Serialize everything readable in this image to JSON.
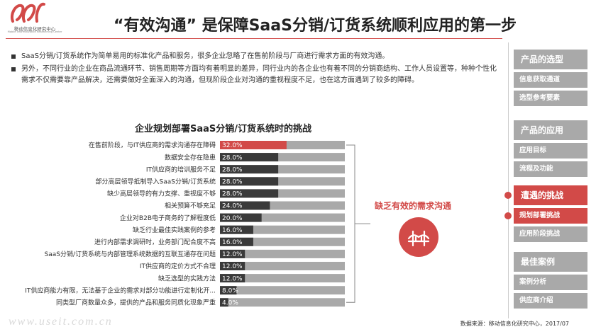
{
  "logo": {
    "name": "移动信息化研究中心",
    "sub": "Mobile Informatization Researching Center"
  },
  "page_title": "“有效沟通” 是保障SaaS分销/订货系统顺利应用的第一步",
  "bullets": [
    "SaaS分销/订货系统作为简单易用的标准化产品和服务，很多企业忽略了在售前阶段与厂商进行需求方面的有效沟通。",
    "另外，不同行业的企业在商品流通环节、销售周期等方面均有着明显的差异，同行业内的各企业也有着不同的分销商结构、工作人员设置等，种种个性化需求不仅需要靠产品解决，还需要做好全面深入的沟通，但现阶段企业对沟通的重视程度不足，也在这方面遇到了较多的障碍。"
  ],
  "callout": "缺乏有效的需求沟通",
  "colors": {
    "accent": "#d24a48",
    "bar_dark": "#3a3a3a",
    "bar_track": "#a9a9a9"
  },
  "chart_data": {
    "type": "bar",
    "orientation": "horizontal",
    "title": "企业规划部署SaaS分销/订货系统时的挑战",
    "categories": [
      "在售前阶段，与IT供应商的需求沟通存在障碍",
      "数据安全存在隐患",
      "IT供应商的培训服务不足",
      "部分高层领导抵制导入SaaS分销/订货系统",
      "缺少高层领导的有力支撑、重视度不够",
      "相关预算不够充足",
      "企业对B2B电子商务的了解程度低",
      "缺乏行业最佳实践案例的参考",
      "进行内部需求调研时，业务部门配合度不高",
      "SaaS分销/订货系统与内部管理系统数据的互联互通存在问题",
      "IT供应商的定价方式不合理",
      "缺乏选型的实践方法",
      "IT供应商能力有限，无法基于企业的需求对部分功能进行定制化开...",
      "同类型厂商数量众多，提供的产品和服务同质化现象严重"
    ],
    "values": [
      32.0,
      28.0,
      28.0,
      28.0,
      28.0,
      24.0,
      20.0,
      16.0,
      16.0,
      12.0,
      12.0,
      12.0,
      8.0,
      4.0
    ],
    "value_labels": [
      "32.0%",
      "28.0%",
      "28.0%",
      "28.0%",
      "28.0%",
      "24.0%",
      "20.0%",
      "16.0%",
      "16.0%",
      "12.0%",
      "12.0%",
      "12.0%",
      "8.0%",
      "4.0%"
    ],
    "highlight_index": 0,
    "xlim": [
      0,
      60
    ],
    "grid": false,
    "legend": "none"
  },
  "sidebar": {
    "sections": [
      {
        "title": "产品的选型",
        "active": false,
        "items": [
          {
            "label": "信息获取通道",
            "active": false
          },
          {
            "label": "选型参考要素",
            "active": false
          }
        ]
      },
      {
        "title": "产品的应用",
        "active": false,
        "items": [
          {
            "label": "应用目标",
            "active": false
          },
          {
            "label": "流程及功能",
            "active": false
          }
        ]
      },
      {
        "title": "遭遇的挑战",
        "active": true,
        "items": [
          {
            "label": "规划部署挑战",
            "active": true
          },
          {
            "label": "应用阶段挑战",
            "active": false
          }
        ]
      },
      {
        "title": "最佳案例",
        "active": false,
        "items": [
          {
            "label": "案例分析",
            "active": false
          },
          {
            "label": "供应商介绍",
            "active": false
          }
        ]
      }
    ]
  },
  "source": "数据来源：移动信息化研究中心，2017/07",
  "watermark": "www.useit.com.cn"
}
